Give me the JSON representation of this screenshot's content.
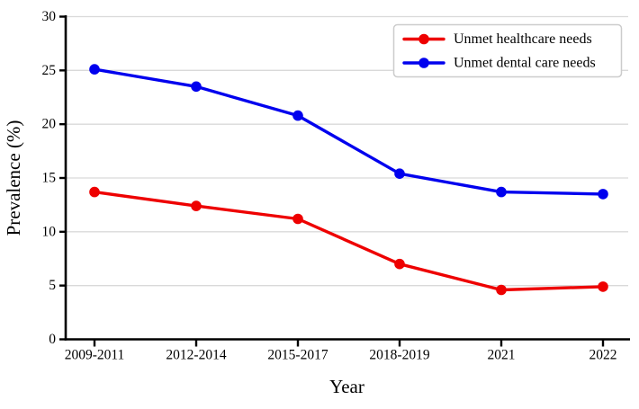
{
  "chart_data": {
    "type": "line",
    "categories": [
      "2009-2011",
      "2012-2014",
      "2015-2017",
      "2018-2019",
      "2021",
      "2022"
    ],
    "series": [
      {
        "name": "Unmet healthcare needs",
        "color": "#ee0000",
        "values": [
          13.7,
          12.4,
          11.2,
          7.0,
          4.6,
          4.9
        ]
      },
      {
        "name": "Unmet dental care needs",
        "color": "#0000ee",
        "values": [
          25.1,
          23.5,
          20.8,
          15.4,
          13.7,
          13.5
        ]
      }
    ],
    "title": "",
    "xlabel": "Year",
    "ylabel": "Prevalence (%)",
    "ylim": [
      0,
      30
    ],
    "yticks": [
      0,
      5,
      10,
      15,
      20,
      25,
      30
    ],
    "grid": true,
    "grid_color": "#d9d9d9",
    "axis_color": "#000000",
    "marker": "circle",
    "legend": {
      "position": "upper right",
      "background": "#ffffff",
      "border_color": "#cccccc",
      "entries": [
        "Unmet healthcare needs",
        "Unmet dental care needs"
      ]
    }
  }
}
